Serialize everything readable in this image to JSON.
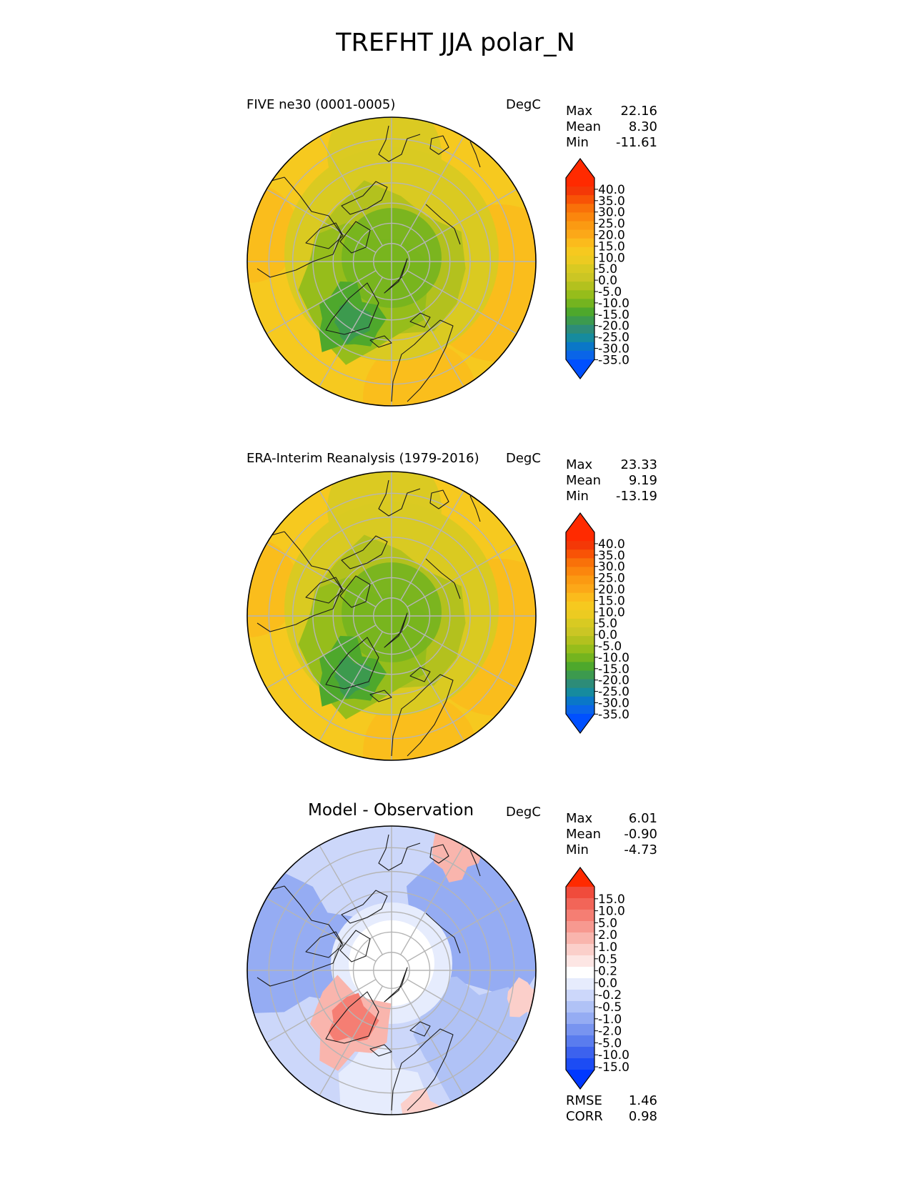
{
  "figure": {
    "title": "TREFHT JJA polar_N"
  },
  "colors": {
    "abs_levels": [
      "#0050ff",
      "#0a65e8",
      "#0a77c8",
      "#168b9e",
      "#2d8c78",
      "#3c9a4e",
      "#4ea82c",
      "#74b41f",
      "#96bd1b",
      "#b3c11e",
      "#cbc624",
      "#d8ca22",
      "#eccb21",
      "#f6c91f",
      "#fbbb1c",
      "#fca818",
      "#fb9a12",
      "#fb860d",
      "#f97109",
      "#f85306",
      "#f43807",
      "#ff2a00",
      "#ff2a00"
    ],
    "diff_levels": [
      "#0038ff",
      "#1c4cf4",
      "#3c62ee",
      "#5a7cee",
      "#7894f0",
      "#95acf3",
      "#b0c2f6",
      "#ccd7fa",
      "#e6ecfd",
      "#ffffff",
      "#fde6e4",
      "#fbcfca",
      "#f9b5ad",
      "#f79990",
      "#f57e73",
      "#f26558",
      "#f04b3c",
      "#ff2a00"
    ],
    "coast": "#1a1a1a",
    "grid": "#b5b5b5"
  },
  "panels": [
    {
      "title": "FIVE ne30 (0001-0005)",
      "units": "DegC",
      "stats": [
        {
          "label": "Max",
          "value": "22.16"
        },
        {
          "label": "Mean",
          "value": "8.30"
        },
        {
          "label": "Min",
          "value": "-11.61"
        }
      ],
      "colorbar_ticks": [
        "40.0",
        "35.0",
        "30.0",
        "25.0",
        "20.0",
        "15.0",
        "10.0",
        "5.0",
        "0.0",
        "-5.0",
        "-10.0",
        "-15.0",
        "-20.0",
        "-25.0",
        "-30.0",
        "-35.0"
      ]
    },
    {
      "title": "ERA-Interim Reanalysis (1979-2016)",
      "units": "DegC",
      "stats": [
        {
          "label": "Max",
          "value": "23.33"
        },
        {
          "label": "Mean",
          "value": "9.19"
        },
        {
          "label": "Min",
          "value": "-13.19"
        }
      ],
      "colorbar_ticks": [
        "40.0",
        "35.0",
        "30.0",
        "25.0",
        "20.0",
        "15.0",
        "10.0",
        "5.0",
        "0.0",
        "-5.0",
        "-10.0",
        "-15.0",
        "-20.0",
        "-25.0",
        "-30.0",
        "-35.0"
      ]
    },
    {
      "title": "Model - Observation",
      "units": "DegC",
      "stats": [
        {
          "label": "Max",
          "value": "6.01"
        },
        {
          "label": "Mean",
          "value": "-0.90"
        },
        {
          "label": "Min",
          "value": "-4.73"
        }
      ],
      "colorbar_ticks": [
        "15.0",
        "10.0",
        "5.0",
        "2.0",
        "1.0",
        "0.5",
        "0.2",
        "0.0",
        "-0.2",
        "-0.5",
        "-1.0",
        "-2.0",
        "-5.0",
        "-10.0",
        "-15.0"
      ],
      "metrics": [
        {
          "label": "RMSE",
          "value": "1.46"
        },
        {
          "label": "CORR",
          "value": "0.98"
        }
      ]
    }
  ],
  "chart_data": [
    {
      "type": "heatmap",
      "projection": "north polar stereographic",
      "title": "FIVE ne30 (0001-0005)",
      "units": "DegC",
      "max": 22.16,
      "mean": 8.3,
      "min": -11.61,
      "levels": [
        -35,
        -30,
        -25,
        -20,
        -15,
        -10,
        -5,
        0,
        5,
        10,
        15,
        20,
        25,
        30,
        35,
        40
      ]
    },
    {
      "type": "heatmap",
      "projection": "north polar stereographic",
      "title": "ERA-Interim Reanalysis (1979-2016)",
      "units": "DegC",
      "max": 23.33,
      "mean": 9.19,
      "min": -13.19,
      "levels": [
        -35,
        -30,
        -25,
        -20,
        -15,
        -10,
        -5,
        0,
        5,
        10,
        15,
        20,
        25,
        30,
        35,
        40
      ]
    },
    {
      "type": "heatmap",
      "projection": "north polar stereographic",
      "title": "Model - Observation",
      "units": "DegC",
      "max": 6.01,
      "mean": -0.9,
      "min": -4.73,
      "rmse": 1.46,
      "corr": 0.98,
      "levels": [
        -15,
        -10,
        -5,
        -2,
        -1,
        -0.5,
        -0.2,
        0,
        0.2,
        0.5,
        1,
        2,
        5,
        10,
        15
      ]
    }
  ]
}
